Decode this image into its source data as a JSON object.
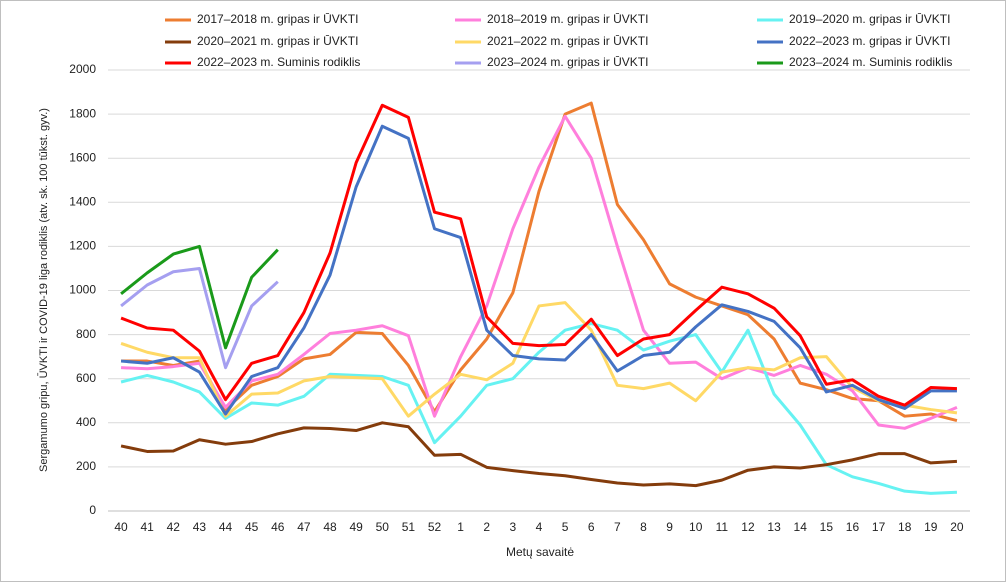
{
  "chart_data": {
    "type": "line",
    "y_label": "Sergamumo gripu, ŪVKTI ir COVID-19 liga rodiklis (atv. sk. 100 tūkst. gyv.)",
    "x_label": "Metų savaitė",
    "categories": [
      "40",
      "41",
      "42",
      "43",
      "44",
      "45",
      "46",
      "47",
      "48",
      "49",
      "50",
      "51",
      "52",
      "1",
      "2",
      "3",
      "4",
      "5",
      "6",
      "7",
      "8",
      "9",
      "10",
      "11",
      "12",
      "13",
      "14",
      "15",
      "16",
      "17",
      "18",
      "19",
      "20"
    ],
    "ylim": [
      0,
      2000
    ],
    "yticks": [
      0,
      200,
      400,
      600,
      800,
      1000,
      1200,
      1400,
      1600,
      1800,
      2000
    ],
    "grid": true,
    "series": [
      {
        "name": "2017–2018 m. gripas ir ŪVKTI",
        "color": "#ed7d31",
        "values": [
          680,
          680,
          660,
          680,
          460,
          570,
          610,
          690,
          710,
          810,
          805,
          660,
          450,
          640,
          780,
          990,
          1450,
          1800,
          1850,
          1390,
          1230,
          1030,
          970,
          930,
          890,
          780,
          580,
          550,
          510,
          500,
          430,
          440,
          410
        ]
      },
      {
        "name": "2018–2019 m. gripas ir ŪVKTI",
        "color": "#ff7fdc",
        "values": [
          650,
          645,
          655,
          670,
          470,
          590,
          620,
          710,
          805,
          820,
          840,
          795,
          430,
          700,
          930,
          1280,
          1560,
          1790,
          1600,
          1200,
          820,
          670,
          675,
          600,
          650,
          615,
          660,
          620,
          545,
          390,
          375,
          420,
          470
        ]
      },
      {
        "name": "2019–2020 m. gripas ir ŪVKTI",
        "color": "#66f2f2",
        "values": [
          585,
          615,
          585,
          540,
          420,
          490,
          480,
          520,
          620,
          615,
          610,
          570,
          310,
          430,
          570,
          600,
          720,
          820,
          850,
          820,
          730,
          770,
          800,
          630,
          820,
          530,
          390,
          210,
          155,
          125,
          90,
          80,
          85
        ]
      },
      {
        "name": "2020–2021 m. gripas ir ŪVKTI",
        "color": "#843c0c",
        "values": [
          295,
          270,
          272,
          323,
          303,
          315,
          350,
          377,
          374,
          365,
          400,
          382,
          253,
          257,
          198,
          183,
          170,
          160,
          143,
          127,
          118,
          123,
          115,
          140,
          185,
          200,
          195,
          210,
          232,
          260,
          260,
          218,
          225
        ]
      },
      {
        "name": "2021–2022 m. gripas ir ŪVKTI",
        "color": "#ffd966",
        "values": [
          760,
          720,
          695,
          695,
          430,
          530,
          535,
          590,
          610,
          605,
          600,
          430,
          530,
          620,
          595,
          670,
          930,
          945,
          820,
          570,
          555,
          580,
          500,
          630,
          650,
          640,
          695,
          700,
          560,
          500,
          480,
          460,
          445
        ]
      },
      {
        "name": "2022–2023 m. gripas ir ŪVKTI",
        "color": "#4472c4",
        "values": [
          680,
          670,
          695,
          630,
          440,
          610,
          650,
          830,
          1070,
          1470,
          1745,
          1690,
          1280,
          1240,
          820,
          705,
          690,
          685,
          800,
          635,
          705,
          720,
          835,
          935,
          905,
          860,
          740,
          540,
          570,
          505,
          465,
          545,
          545
        ]
      },
      {
        "name": "2022–2023 m. Suminis rodiklis",
        "color": "#ff0000",
        "values": [
          875,
          830,
          820,
          725,
          505,
          670,
          705,
          900,
          1170,
          1580,
          1840,
          1785,
          1355,
          1325,
          880,
          760,
          750,
          755,
          870,
          705,
          780,
          800,
          910,
          1015,
          985,
          920,
          795,
          575,
          595,
          520,
          480,
          560,
          555
        ]
      },
      {
        "name": "2023–2024 m. gripas ir ŪVKTI",
        "color": "#a59ff0",
        "values": [
          930,
          1025,
          1085,
          1100,
          650,
          930,
          1040,
          null,
          null,
          null,
          null,
          null,
          null,
          null,
          null,
          null,
          null,
          null,
          null,
          null,
          null,
          null,
          null,
          null,
          null,
          null,
          null,
          null,
          null,
          null,
          null,
          null,
          null
        ]
      },
      {
        "name": "2023–2024 m. Suminis rodiklis",
        "color": "#1a9a1a",
        "values": [
          985,
          1080,
          1165,
          1200,
          740,
          1060,
          1185,
          null,
          null,
          null,
          null,
          null,
          null,
          null,
          null,
          null,
          null,
          null,
          null,
          null,
          null,
          null,
          null,
          null,
          null,
          null,
          null,
          null,
          null,
          null,
          null,
          null,
          null
        ]
      }
    ]
  }
}
